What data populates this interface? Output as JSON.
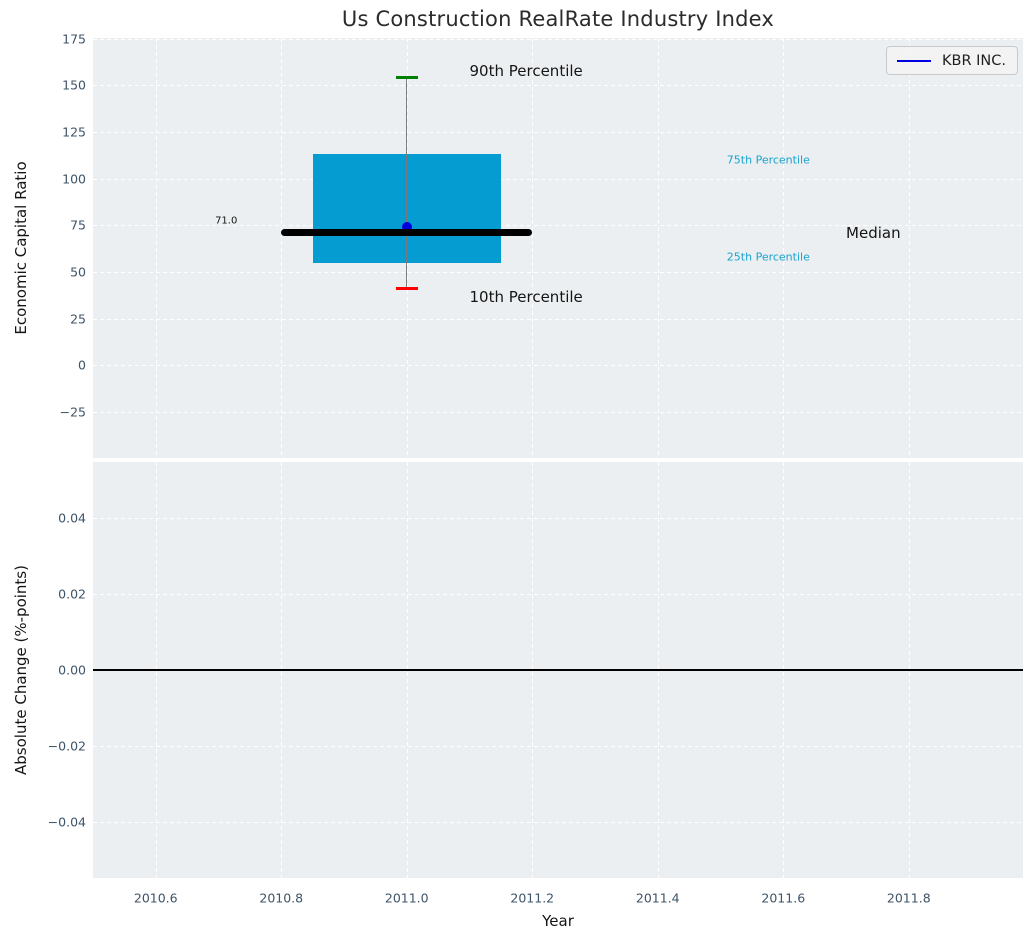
{
  "colors": {
    "axes_bg": "#eceff1",
    "grid": "#ffffff",
    "box_fill": "#059cd1",
    "whisker": "#7b7b7b",
    "cap_top": "#008000",
    "cap_bottom": "#ff0000",
    "median_line": "#000000",
    "point": "#0000dd",
    "legend_line": "#0000e0",
    "tick_label": "#3e5468",
    "annotation_dark": "#151515",
    "annotation_cyan": "#17a3cf",
    "zero_line": "#000000"
  },
  "chart_data": [
    {
      "type": "boxplot",
      "title": "Us Construction RealRate Industry Index",
      "xlabel": "",
      "ylabel": "Economic Capital Ratio",
      "xlim": [
        2010.5,
        2011.982
      ],
      "ylim": [
        -49.6,
        175.4
      ],
      "yticks": [
        175,
        150,
        125,
        100,
        75,
        50,
        25,
        0,
        -25
      ],
      "ytick_labels": [
        "175",
        "150",
        "125",
        "100",
        "75",
        "50",
        "25",
        "0",
        "−25"
      ],
      "xticks": [
        2010.6,
        2010.8,
        2011.0,
        2011.2,
        2011.4,
        2011.6,
        2011.8
      ],
      "xtick_labels_visible": false,
      "grid": true,
      "legend": {
        "label": "KBR INC.",
        "position": "upper right"
      },
      "box": {
        "center_x": 2011.0,
        "box_x": [
          2010.85,
          2011.15
        ],
        "median_x": [
          2010.8,
          2011.2
        ],
        "p10": 41,
        "p25": 55,
        "median": 71.0,
        "p75": 113,
        "p90": 154,
        "median_label": "71.0"
      },
      "series": [
        {
          "name": "KBR INC.",
          "x": [
            2011.0
          ],
          "y": [
            74.3
          ]
        }
      ],
      "annotations": [
        {
          "text": "90th Percentile",
          "x": 2011.1,
          "y": 157.5,
          "align": "left",
          "color": "dark",
          "size": 15
        },
        {
          "text": "10th Percentile",
          "x": 2011.1,
          "y": 36.5,
          "align": "left",
          "color": "dark",
          "size": 15
        },
        {
          "text": "75th Percentile",
          "x": 2011.51,
          "y": 110,
          "align": "left",
          "color": "cyan",
          "size": 11
        },
        {
          "text": "25th Percentile",
          "x": 2011.51,
          "y": 58,
          "align": "left",
          "color": "cyan",
          "size": 11
        },
        {
          "text": "Median",
          "x": 2011.7,
          "y": 71,
          "align": "left",
          "color": "dark",
          "size": 15
        },
        {
          "text": "71.0",
          "x": 2010.73,
          "y": 77.5,
          "align": "right",
          "color": "dark",
          "size": 10
        }
      ]
    },
    {
      "type": "line",
      "title": "",
      "xlabel": "Year",
      "ylabel": "Absolute Change (%-points)",
      "xlim": [
        2010.5,
        2011.982
      ],
      "ylim": [
        -0.0548,
        0.0548
      ],
      "yticks": [
        0.04,
        0.02,
        0.0,
        -0.02,
        -0.04
      ],
      "ytick_labels": [
        "0.04",
        "0.02",
        "0.00",
        "−0.02",
        "−0.04"
      ],
      "xticks": [
        2010.6,
        2010.8,
        2011.0,
        2011.2,
        2011.4,
        2011.6,
        2011.8
      ],
      "xtick_labels": [
        "2010.6",
        "2010.8",
        "2011.0",
        "2011.2",
        "2011.4",
        "2011.6",
        "2011.8"
      ],
      "grid": true,
      "zero_line": 0.0,
      "series": []
    }
  ]
}
